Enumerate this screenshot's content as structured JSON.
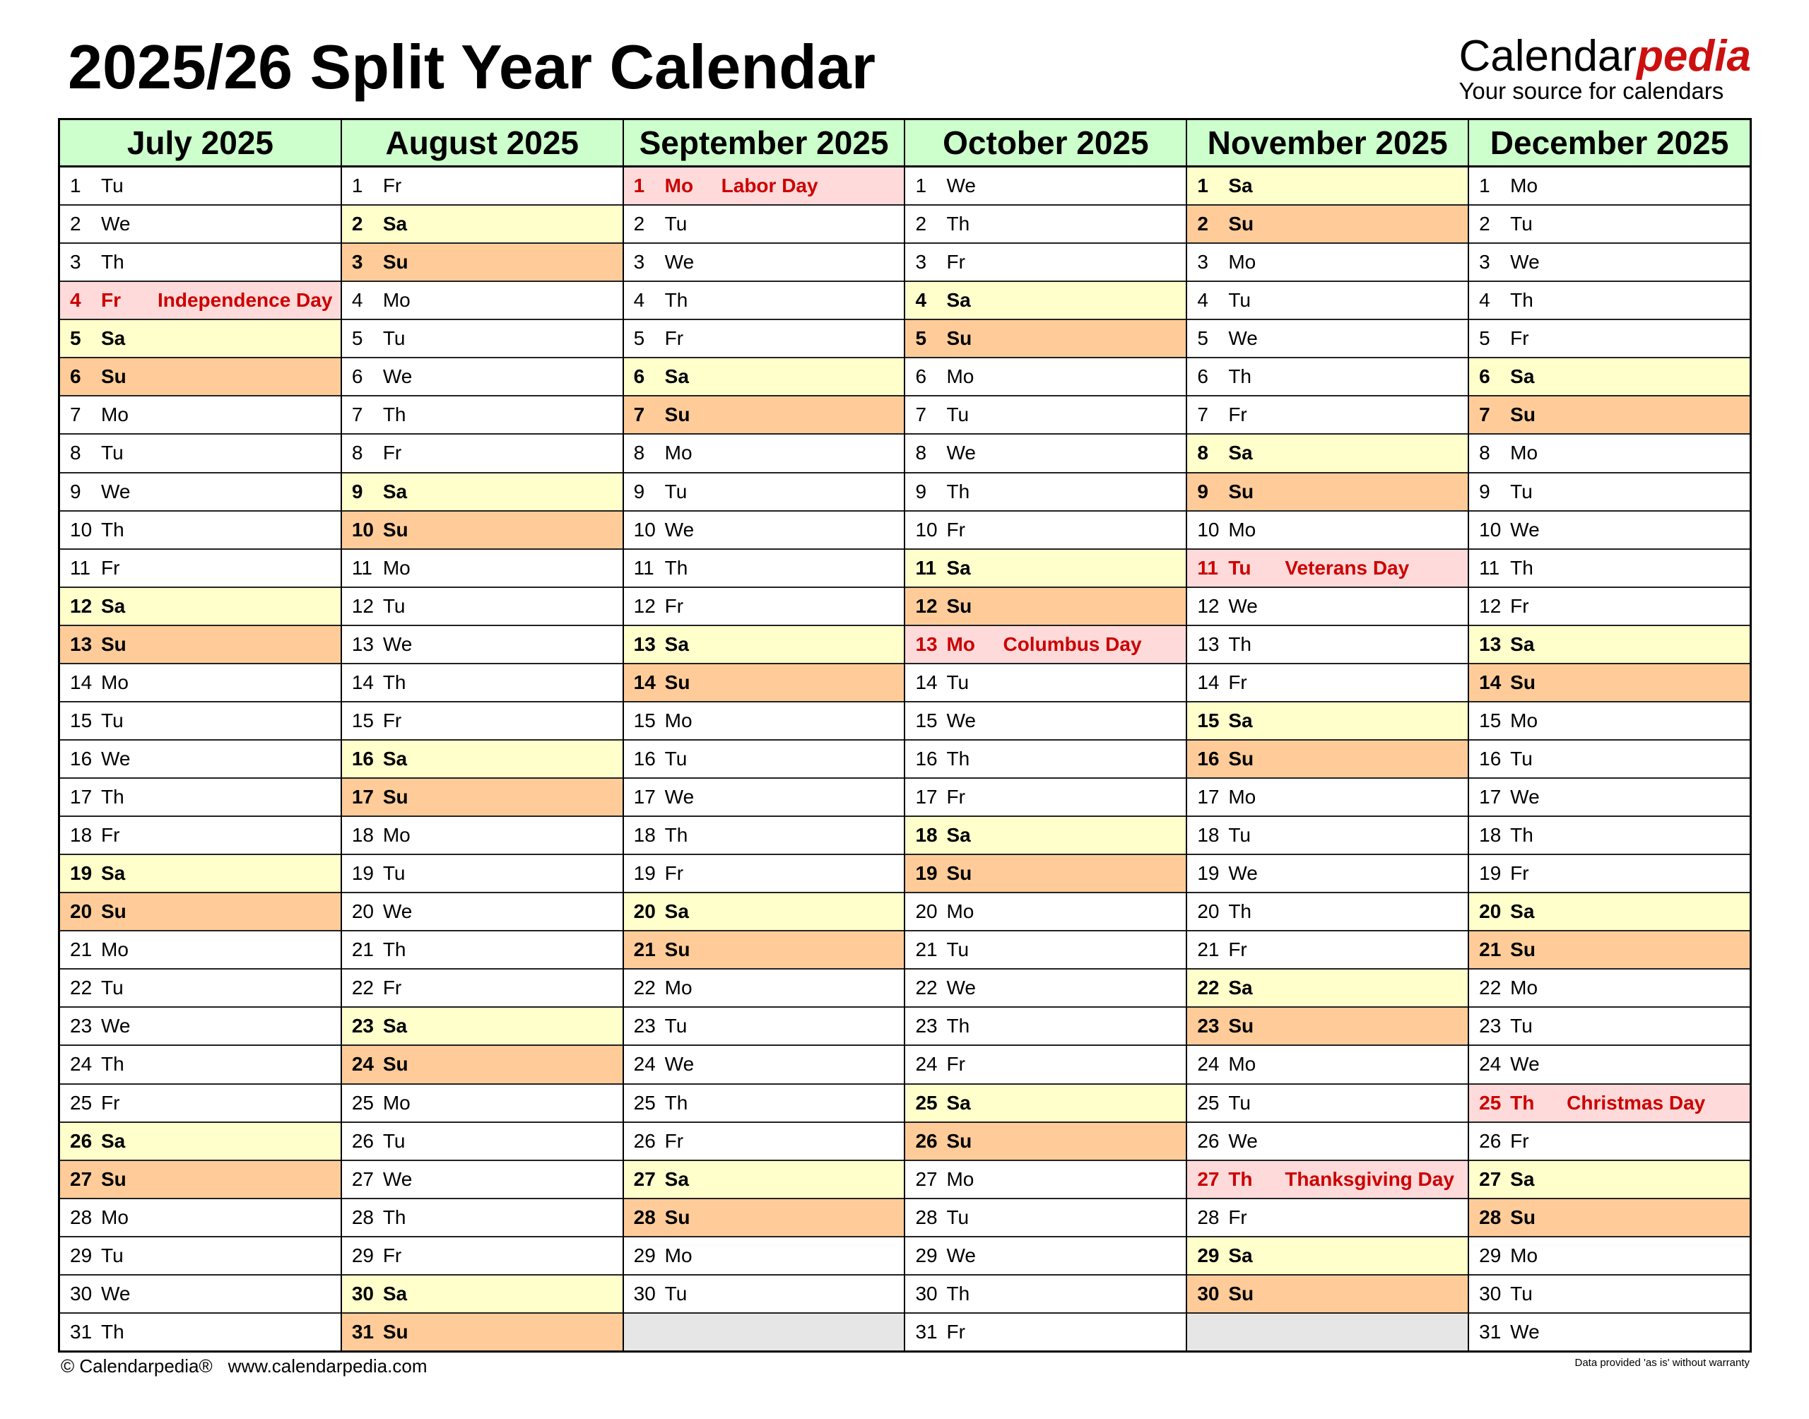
{
  "title": "2025/26 Split Year Calendar",
  "logo": {
    "brand_a": "Calendar",
    "brand_b": "pedia",
    "tagline": "Your source for calendars"
  },
  "colors": {
    "header": "#ccffcc",
    "saturday": "#ffffcc",
    "sunday": "#ffcc99",
    "holiday_bg": "#ffdada",
    "holiday_text": "#cc0000",
    "empty": "#e6e6e6",
    "logo_accent": "#cc0f0f"
  },
  "months": [
    {
      "name": "July 2025",
      "days": [
        [
          "1",
          "Tu"
        ],
        [
          "2",
          "We"
        ],
        [
          "3",
          "Th"
        ],
        [
          "4",
          "Fr",
          "Independence Day"
        ],
        [
          "5",
          "Sa"
        ],
        [
          "6",
          "Su"
        ],
        [
          "7",
          "Mo"
        ],
        [
          "8",
          "Tu"
        ],
        [
          "9",
          "We"
        ],
        [
          "10",
          "Th"
        ],
        [
          "11",
          "Fr"
        ],
        [
          "12",
          "Sa"
        ],
        [
          "13",
          "Su"
        ],
        [
          "14",
          "Mo"
        ],
        [
          "15",
          "Tu"
        ],
        [
          "16",
          "We"
        ],
        [
          "17",
          "Th"
        ],
        [
          "18",
          "Fr"
        ],
        [
          "19",
          "Sa"
        ],
        [
          "20",
          "Su"
        ],
        [
          "21",
          "Mo"
        ],
        [
          "22",
          "Tu"
        ],
        [
          "23",
          "We"
        ],
        [
          "24",
          "Th"
        ],
        [
          "25",
          "Fr"
        ],
        [
          "26",
          "Sa"
        ],
        [
          "27",
          "Su"
        ],
        [
          "28",
          "Mo"
        ],
        [
          "29",
          "Tu"
        ],
        [
          "30",
          "We"
        ],
        [
          "31",
          "Th"
        ]
      ]
    },
    {
      "name": "August 2025",
      "days": [
        [
          "1",
          "Fr"
        ],
        [
          "2",
          "Sa"
        ],
        [
          "3",
          "Su"
        ],
        [
          "4",
          "Mo"
        ],
        [
          "5",
          "Tu"
        ],
        [
          "6",
          "We"
        ],
        [
          "7",
          "Th"
        ],
        [
          "8",
          "Fr"
        ],
        [
          "9",
          "Sa"
        ],
        [
          "10",
          "Su"
        ],
        [
          "11",
          "Mo"
        ],
        [
          "12",
          "Tu"
        ],
        [
          "13",
          "We"
        ],
        [
          "14",
          "Th"
        ],
        [
          "15",
          "Fr"
        ],
        [
          "16",
          "Sa"
        ],
        [
          "17",
          "Su"
        ],
        [
          "18",
          "Mo"
        ],
        [
          "19",
          "Tu"
        ],
        [
          "20",
          "We"
        ],
        [
          "21",
          "Th"
        ],
        [
          "22",
          "Fr"
        ],
        [
          "23",
          "Sa"
        ],
        [
          "24",
          "Su"
        ],
        [
          "25",
          "Mo"
        ],
        [
          "26",
          "Tu"
        ],
        [
          "27",
          "We"
        ],
        [
          "28",
          "Th"
        ],
        [
          "29",
          "Fr"
        ],
        [
          "30",
          "Sa"
        ],
        [
          "31",
          "Su"
        ]
      ]
    },
    {
      "name": "September 2025",
      "days": [
        [
          "1",
          "Mo",
          "Labor Day"
        ],
        [
          "2",
          "Tu"
        ],
        [
          "3",
          "We"
        ],
        [
          "4",
          "Th"
        ],
        [
          "5",
          "Fr"
        ],
        [
          "6",
          "Sa"
        ],
        [
          "7",
          "Su"
        ],
        [
          "8",
          "Mo"
        ],
        [
          "9",
          "Tu"
        ],
        [
          "10",
          "We"
        ],
        [
          "11",
          "Th"
        ],
        [
          "12",
          "Fr"
        ],
        [
          "13",
          "Sa"
        ],
        [
          "14",
          "Su"
        ],
        [
          "15",
          "Mo"
        ],
        [
          "16",
          "Tu"
        ],
        [
          "17",
          "We"
        ],
        [
          "18",
          "Th"
        ],
        [
          "19",
          "Fr"
        ],
        [
          "20",
          "Sa"
        ],
        [
          "21",
          "Su"
        ],
        [
          "22",
          "Mo"
        ],
        [
          "23",
          "Tu"
        ],
        [
          "24",
          "We"
        ],
        [
          "25",
          "Th"
        ],
        [
          "26",
          "Fr"
        ],
        [
          "27",
          "Sa"
        ],
        [
          "28",
          "Su"
        ],
        [
          "29",
          "Mo"
        ],
        [
          "30",
          "Tu"
        ]
      ]
    },
    {
      "name": "October 2025",
      "days": [
        [
          "1",
          "We"
        ],
        [
          "2",
          "Th"
        ],
        [
          "3",
          "Fr"
        ],
        [
          "4",
          "Sa"
        ],
        [
          "5",
          "Su"
        ],
        [
          "6",
          "Mo"
        ],
        [
          "7",
          "Tu"
        ],
        [
          "8",
          "We"
        ],
        [
          "9",
          "Th"
        ],
        [
          "10",
          "Fr"
        ],
        [
          "11",
          "Sa"
        ],
        [
          "12",
          "Su"
        ],
        [
          "13",
          "Mo",
          "Columbus Day"
        ],
        [
          "14",
          "Tu"
        ],
        [
          "15",
          "We"
        ],
        [
          "16",
          "Th"
        ],
        [
          "17",
          "Fr"
        ],
        [
          "18",
          "Sa"
        ],
        [
          "19",
          "Su"
        ],
        [
          "20",
          "Mo"
        ],
        [
          "21",
          "Tu"
        ],
        [
          "22",
          "We"
        ],
        [
          "23",
          "Th"
        ],
        [
          "24",
          "Fr"
        ],
        [
          "25",
          "Sa"
        ],
        [
          "26",
          "Su"
        ],
        [
          "27",
          "Mo"
        ],
        [
          "28",
          "Tu"
        ],
        [
          "29",
          "We"
        ],
        [
          "30",
          "Th"
        ],
        [
          "31",
          "Fr"
        ]
      ]
    },
    {
      "name": "November 2025",
      "days": [
        [
          "1",
          "Sa"
        ],
        [
          "2",
          "Su"
        ],
        [
          "3",
          "Mo"
        ],
        [
          "4",
          "Tu"
        ],
        [
          "5",
          "We"
        ],
        [
          "6",
          "Th"
        ],
        [
          "7",
          "Fr"
        ],
        [
          "8",
          "Sa"
        ],
        [
          "9",
          "Su"
        ],
        [
          "10",
          "Mo"
        ],
        [
          "11",
          "Tu",
          "Veterans Day"
        ],
        [
          "12",
          "We"
        ],
        [
          "13",
          "Th"
        ],
        [
          "14",
          "Fr"
        ],
        [
          "15",
          "Sa"
        ],
        [
          "16",
          "Su"
        ],
        [
          "17",
          "Mo"
        ],
        [
          "18",
          "Tu"
        ],
        [
          "19",
          "We"
        ],
        [
          "20",
          "Th"
        ],
        [
          "21",
          "Fr"
        ],
        [
          "22",
          "Sa"
        ],
        [
          "23",
          "Su"
        ],
        [
          "24",
          "Mo"
        ],
        [
          "25",
          "Tu"
        ],
        [
          "26",
          "We"
        ],
        [
          "27",
          "Th",
          "Thanksgiving Day"
        ],
        [
          "28",
          "Fr"
        ],
        [
          "29",
          "Sa"
        ],
        [
          "30",
          "Su"
        ]
      ]
    },
    {
      "name": "December 2025",
      "days": [
        [
          "1",
          "Mo"
        ],
        [
          "2",
          "Tu"
        ],
        [
          "3",
          "We"
        ],
        [
          "4",
          "Th"
        ],
        [
          "5",
          "Fr"
        ],
        [
          "6",
          "Sa"
        ],
        [
          "7",
          "Su"
        ],
        [
          "8",
          "Mo"
        ],
        [
          "9",
          "Tu"
        ],
        [
          "10",
          "We"
        ],
        [
          "11",
          "Th"
        ],
        [
          "12",
          "Fr"
        ],
        [
          "13",
          "Sa"
        ],
        [
          "14",
          "Su"
        ],
        [
          "15",
          "Mo"
        ],
        [
          "16",
          "Tu"
        ],
        [
          "17",
          "We"
        ],
        [
          "18",
          "Th"
        ],
        [
          "19",
          "Fr"
        ],
        [
          "20",
          "Sa"
        ],
        [
          "21",
          "Su"
        ],
        [
          "22",
          "Mo"
        ],
        [
          "23",
          "Tu"
        ],
        [
          "24",
          "We"
        ],
        [
          "25",
          "Th",
          "Christmas Day"
        ],
        [
          "26",
          "Fr"
        ],
        [
          "27",
          "Sa"
        ],
        [
          "28",
          "Su"
        ],
        [
          "29",
          "Mo"
        ],
        [
          "30",
          "Tu"
        ],
        [
          "31",
          "We"
        ]
      ]
    }
  ],
  "footer": {
    "copyright": "© Calendarpedia®",
    "url": "www.calendarpedia.com",
    "disclaimer": "Data provided 'as is' without warranty"
  }
}
